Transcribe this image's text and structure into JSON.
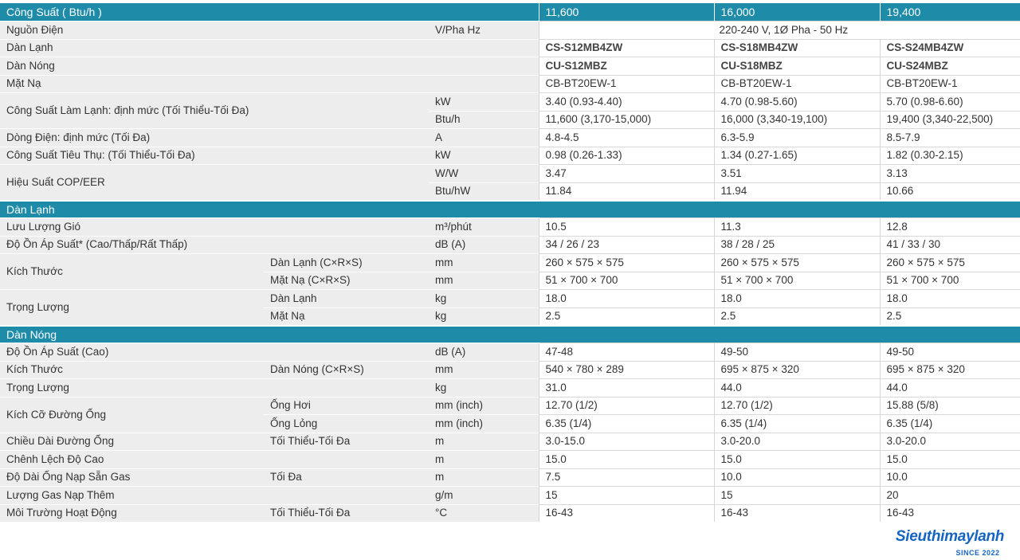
{
  "header": {
    "label": "Công Suất ( Btu/h )",
    "models": [
      "11,600",
      "16,000",
      "19,400"
    ]
  },
  "rows": {
    "nguon_dien": {
      "label": "Nguồn Điện",
      "unit": "V/Pha Hz",
      "value": "220-240 V, 1Ø Pha - 50 Hz"
    },
    "dan_lanh": {
      "label": "Dàn Lạnh",
      "values": [
        "CS-S12MB4ZW",
        "CS-S18MB4ZW",
        "CS-S24MB4ZW"
      ]
    },
    "dan_nong": {
      "label": "Dàn Nóng",
      "values": [
        "CU-S12MBZ",
        "CU-S18MBZ",
        "CU-S24MBZ"
      ]
    },
    "mat_na": {
      "label": "Mặt Nạ",
      "values": [
        "CB-BT20EW-1",
        "CB-BT20EW-1",
        "CB-BT20EW-1"
      ]
    },
    "cong_suat_lam_lanh": {
      "label": "Công Suất Làm Lạnh: định mức (Tối Thiểu-Tối Đa)",
      "kw": {
        "unit": "kW",
        "values": [
          "3.40 (0.93-4.40)",
          "4.70 (0.98-5.60)",
          "5.70 (0.98-6.60)"
        ]
      },
      "btu": {
        "unit": "Btu/h",
        "values": [
          "11,600 (3,170-15,000)",
          "16,000 (3,340-19,100)",
          "19,400 (3,340-22,500)"
        ]
      }
    },
    "dong_dien": {
      "label": "Dòng Điện: định mức (Tối Đa)",
      "unit": "A",
      "values": [
        "4.8-4.5",
        "6.3-5.9",
        "8.5-7.9"
      ]
    },
    "cong_suat_tieu_thu": {
      "label": "Công Suất Tiêu Thụ: (Tối Thiểu-Tối Đa)",
      "unit": "kW",
      "values": [
        "0.98 (0.26-1.33)",
        "1.34 (0.27-1.65)",
        "1.82 (0.30-2.15)"
      ]
    },
    "hieu_suat": {
      "label": "Hiệu Suất COP/EER",
      "ww": {
        "unit": "W/W",
        "values": [
          "3.47",
          "3.51",
          "3.13"
        ]
      },
      "btuhw": {
        "unit": "Btu/hW",
        "values": [
          "11.84",
          "11.94",
          "10.66"
        ]
      }
    }
  },
  "section_dan_lanh": {
    "title": "Dàn Lạnh",
    "luu_luong_gio": {
      "label": "Lưu Lượng Gió",
      "unit": "m³/phút",
      "values": [
        "10.5",
        "11.3",
        "12.8"
      ]
    },
    "do_on": {
      "label": "Độ Ồn Áp Suất*  (Cao/Thấp/Rất Thấp)",
      "unit": "dB (A)",
      "values": [
        "34 / 26 / 23",
        "38 / 28 / 25",
        "41 / 33 / 30"
      ]
    },
    "kich_thuoc": {
      "label": "Kích Thước",
      "dan_lanh": {
        "sub": "Dàn Lạnh (C×R×S)",
        "unit": "mm",
        "values": [
          "260 × 575 × 575",
          "260 × 575 × 575",
          "260 × 575 × 575"
        ]
      },
      "mat_na": {
        "sub": "Mặt Nạ (C×R×S)",
        "unit": "mm",
        "values": [
          "51 × 700 × 700",
          "51 × 700 × 700",
          "51 × 700 × 700"
        ]
      }
    },
    "trong_luong": {
      "label": "Trọng Lượng",
      "dan_lanh": {
        "sub": "Dàn Lạnh",
        "unit": "kg",
        "values": [
          "18.0",
          "18.0",
          "18.0"
        ]
      },
      "mat_na": {
        "sub": "Mặt Nạ",
        "unit": "kg",
        "values": [
          "2.5",
          "2.5",
          "2.5"
        ]
      }
    }
  },
  "section_dan_nong": {
    "title": "Dàn Nóng",
    "do_on": {
      "label": "Độ Ồn Áp Suất  (Cao)",
      "unit": "dB (A)",
      "values": [
        "47-48",
        "49-50",
        "49-50"
      ]
    },
    "kich_thuoc": {
      "label": "Kích Thước",
      "sub": "Dàn Nóng (C×R×S)",
      "unit": "mm",
      "values": [
        "540 × 780 × 289",
        "695 × 875 × 320",
        "695 × 875 × 320"
      ]
    },
    "trong_luong": {
      "label": "Trọng Lượng",
      "unit": "kg",
      "values": [
        "31.0",
        "44.0",
        "44.0"
      ]
    },
    "kich_co_ong": {
      "label": "Kích Cỡ Đường Ống",
      "hoi": {
        "sub": "Ống Hơi",
        "unit": "mm (inch)",
        "values": [
          "12.70 (1/2)",
          "12.70 (1/2)",
          "15.88 (5/8)"
        ]
      },
      "long": {
        "sub": "Ống Lỏng",
        "unit": "mm (inch)",
        "values": [
          "6.35 (1/4)",
          "6.35 (1/4)",
          "6.35 (1/4)"
        ]
      }
    },
    "chieu_dai_ong": {
      "label": "Chiều Dài Đường Ống",
      "sub": "Tối Thiểu-Tối Đa",
      "unit": "m",
      "values": [
        "3.0-15.0",
        "3.0-20.0",
        "3.0-20.0"
      ]
    },
    "chenh_lech": {
      "label": "Chênh Lệch Độ Cao",
      "unit": "m",
      "values": [
        "15.0",
        "15.0",
        "15.0"
      ]
    },
    "do_dai_nap_san": {
      "label": "Độ Dài Ống Nạp Sẵn Gas",
      "sub": "Tối Đa",
      "unit": "m",
      "values": [
        "7.5",
        "10.0",
        "10.0"
      ]
    },
    "luong_gas": {
      "label": "Lượng Gas Nạp Thêm",
      "unit": "g/m",
      "values": [
        "15",
        "15",
        "20"
      ]
    },
    "moi_truong": {
      "label": "Môi Trường Hoạt Động",
      "sub": "Tối Thiểu-Tối Đa",
      "unit": "°C",
      "values": [
        "16-43",
        "16-43",
        "16-43"
      ]
    }
  },
  "logo": {
    "text": "Sieuthimaylanh",
    "since": "SINCE 2022"
  }
}
